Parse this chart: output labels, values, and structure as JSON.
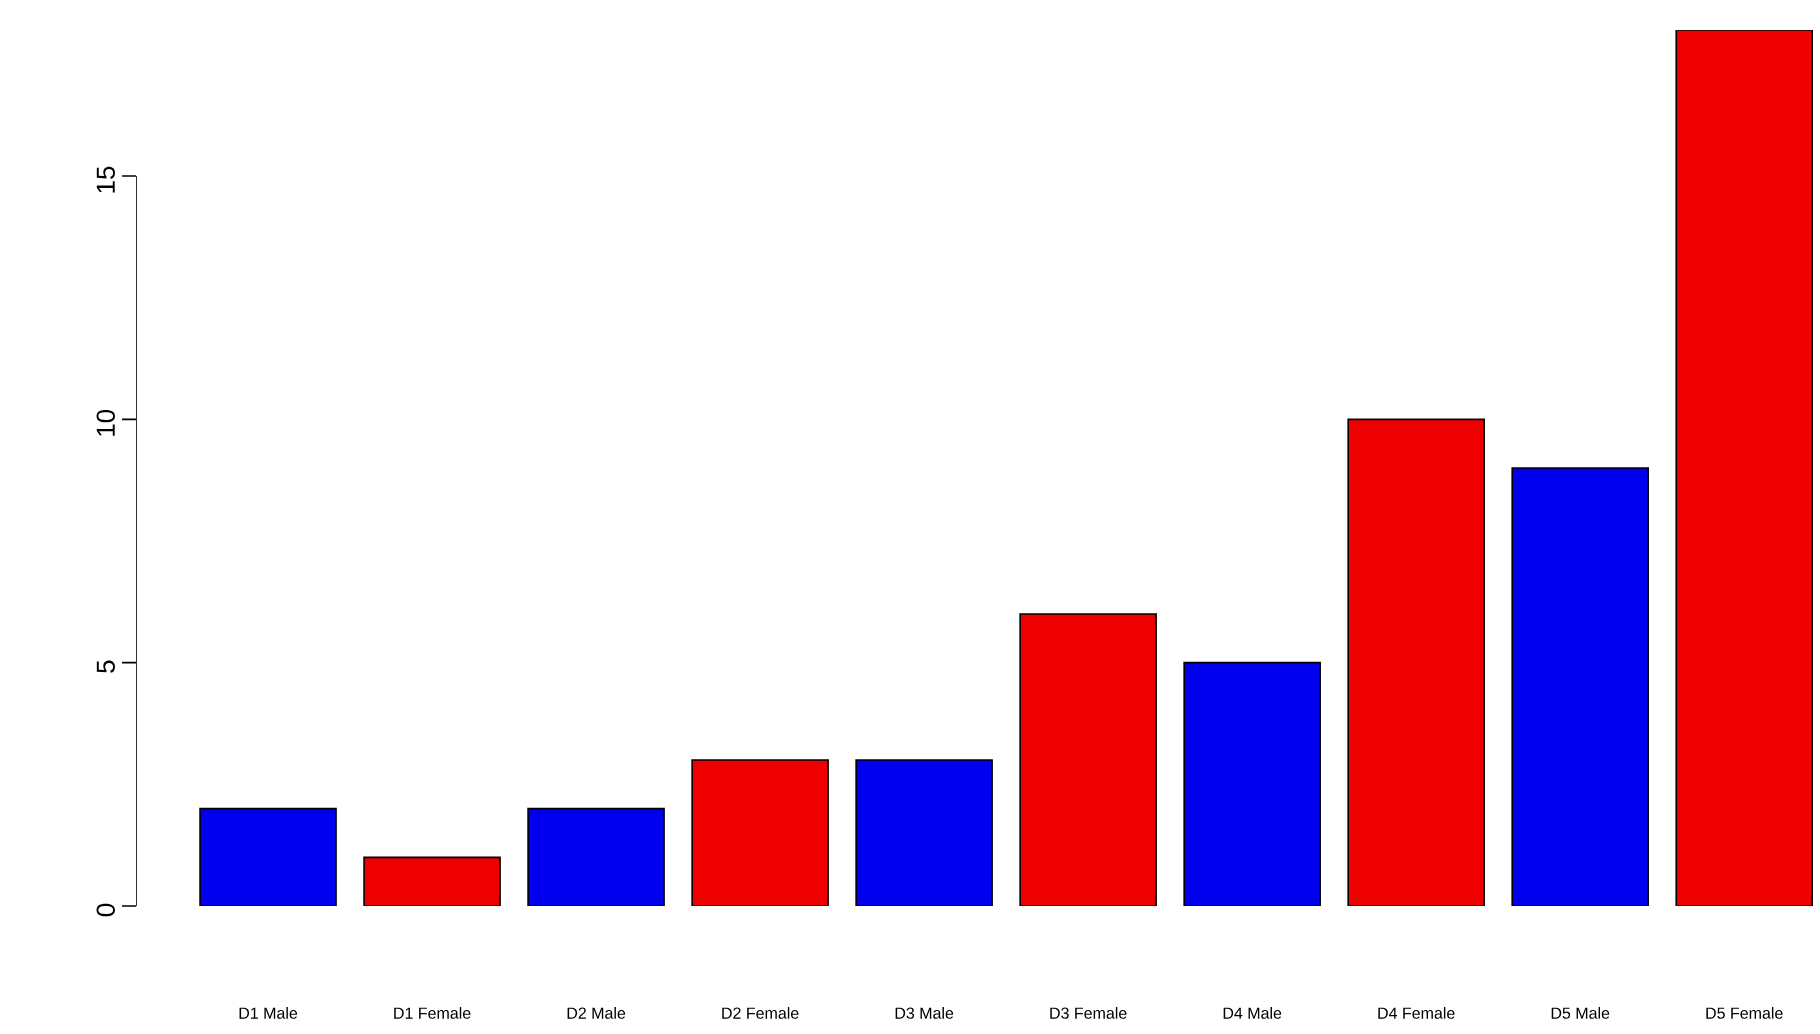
{
  "chart_data": {
    "type": "bar",
    "categories": [
      "D1 Male",
      "D1 Female",
      "D2 Male",
      "D2 Female",
      "D3 Male",
      "D3 Female",
      "D4 Male",
      "D4 Female",
      "D5 Male",
      "D5 Female"
    ],
    "values": [
      2,
      1,
      2,
      3,
      3,
      6,
      5,
      10,
      9,
      18
    ],
    "colors": [
      "#0000ee",
      "#ee0000",
      "#0000ee",
      "#ee0000",
      "#0000ee",
      "#ee0000",
      "#0000ee",
      "#ee0000",
      "#0000ee",
      "#ee0000"
    ],
    "ylim": [
      0,
      18
    ],
    "yticks": [
      0,
      5,
      10,
      15
    ]
  }
}
